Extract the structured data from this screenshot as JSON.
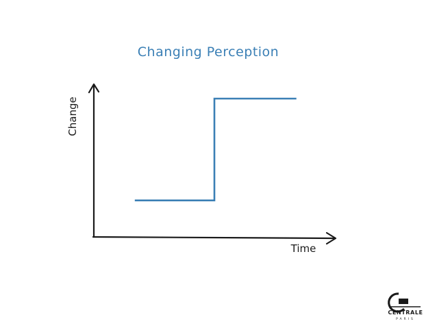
{
  "chart_data": {
    "type": "line",
    "title": "Changing Perception",
    "xlabel": "Time",
    "ylabel": "Change",
    "xlim": [
      0,
      10
    ],
    "ylim": [
      0,
      10
    ],
    "grid": false,
    "series": [
      {
        "x": [
          1.7,
          5.0,
          5.0,
          8.4
        ],
        "y": [
          2.4,
          2.4,
          9.1,
          9.1
        ]
      }
    ]
  },
  "colors": {
    "series": "#3a7fb5",
    "title": "#3a7fb5",
    "axis": "#1a1a1a"
  },
  "logo": {
    "text": "CENTRALE",
    "subtext": "PARIS"
  }
}
